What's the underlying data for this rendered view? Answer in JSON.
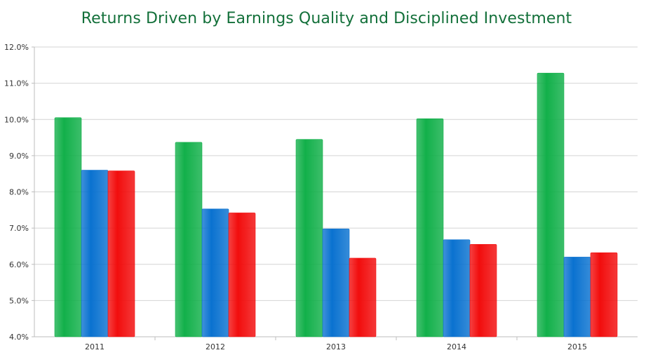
{
  "chart_data": {
    "type": "bar",
    "title": "Returns Driven by Earnings Quality and Disciplined Investment",
    "xlabel": "",
    "ylabel": "",
    "categories": [
      "2011",
      "2012",
      "2013",
      "2014",
      "2015"
    ],
    "ylim": [
      4.0,
      12.0
    ],
    "yticks": [
      "4.0%",
      "5.0%",
      "6.0%",
      "7.0%",
      "8.0%",
      "9.0%",
      "10.0%",
      "11.0%",
      "12.0%"
    ],
    "grid": true,
    "legend": "none",
    "series": [
      {
        "values": [
          10.05,
          9.37,
          9.45,
          10.02,
          11.28
        ],
        "color": "#12b04a"
      },
      {
        "values": [
          8.6,
          7.53,
          6.98,
          6.68,
          6.2
        ],
        "color": "#0a72d0"
      },
      {
        "values": [
          8.58,
          7.42,
          6.17,
          6.55,
          6.32
        ],
        "color": "#f20d0d"
      }
    ]
  }
}
